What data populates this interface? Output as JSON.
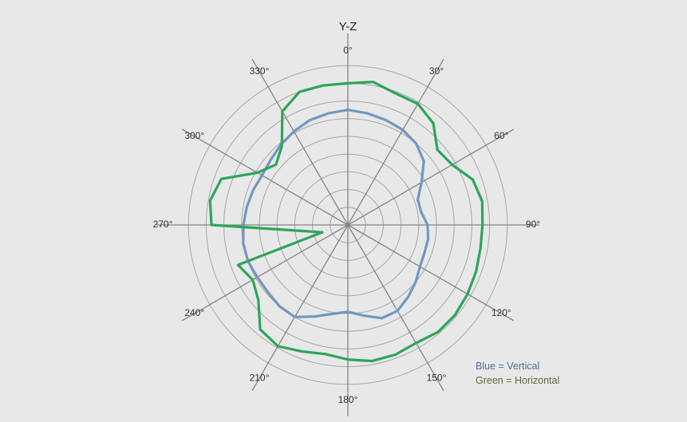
{
  "chart_data": {
    "type": "polar-line",
    "title": "Y-Z",
    "angle_ticks": [
      "0°",
      "30°",
      "60°",
      "90°",
      "120°",
      "150°",
      "180°",
      "210°",
      "240°",
      "270°",
      "300°",
      "330°"
    ],
    "angle_values": [
      0,
      30,
      60,
      90,
      120,
      150,
      180,
      210,
      240,
      270,
      300,
      330
    ],
    "radial_rings": 9,
    "radial_max": 9,
    "angle_direction": "clockwise",
    "zero_at": "top",
    "series": [
      {
        "key": "vertical",
        "color": "#7397c2",
        "points": [
          [
            0,
            6.5
          ],
          [
            10,
            6.4
          ],
          [
            20,
            6.3
          ],
          [
            30,
            6.2
          ],
          [
            40,
            6.0
          ],
          [
            50,
            5.6
          ],
          [
            60,
            4.8
          ],
          [
            70,
            4.2
          ],
          [
            80,
            4.2
          ],
          [
            90,
            4.5
          ],
          [
            100,
            4.6
          ],
          [
            110,
            4.6
          ],
          [
            120,
            4.7
          ],
          [
            130,
            5.0
          ],
          [
            140,
            5.3
          ],
          [
            150,
            5.6
          ],
          [
            160,
            5.6
          ],
          [
            170,
            5.2
          ],
          [
            180,
            4.9
          ],
          [
            190,
            5.1
          ],
          [
            200,
            5.5
          ],
          [
            210,
            6.0
          ],
          [
            220,
            6.0
          ],
          [
            230,
            5.9
          ],
          [
            240,
            5.9
          ],
          [
            250,
            6.0
          ],
          [
            260,
            6.0
          ],
          [
            270,
            5.9
          ],
          [
            280,
            5.8
          ],
          [
            290,
            5.7
          ],
          [
            300,
            5.6
          ],
          [
            310,
            5.7
          ],
          [
            320,
            5.9
          ],
          [
            330,
            6.1
          ],
          [
            340,
            6.3
          ],
          [
            350,
            6.4
          ],
          [
            360,
            6.5
          ]
        ]
      },
      {
        "key": "horizontal",
        "color": "#2ea55a",
        "points": [
          [
            0,
            8.0
          ],
          [
            10,
            8.2
          ],
          [
            20,
            7.9
          ],
          [
            30,
            7.9
          ],
          [
            40,
            7.5
          ],
          [
            50,
            6.6
          ],
          [
            60,
            6.8
          ],
          [
            70,
            7.5
          ],
          [
            80,
            7.7
          ],
          [
            90,
            7.6
          ],
          [
            100,
            7.6
          ],
          [
            110,
            7.7
          ],
          [
            120,
            7.8
          ],
          [
            130,
            7.9
          ],
          [
            140,
            7.9
          ],
          [
            150,
            7.7
          ],
          [
            160,
            7.8
          ],
          [
            170,
            7.8
          ],
          [
            180,
            7.6
          ],
          [
            190,
            7.4
          ],
          [
            200,
            7.6
          ],
          [
            210,
            7.9
          ],
          [
            220,
            7.7
          ],
          [
            230,
            6.6
          ],
          [
            240,
            6.2
          ],
          [
            250,
            6.6
          ],
          [
            254,
            1.5
          ],
          [
            270,
            7.7
          ],
          [
            280,
            7.9
          ],
          [
            290,
            7.6
          ],
          [
            300,
            5.9
          ],
          [
            310,
            5.3
          ],
          [
            320,
            5.8
          ],
          [
            330,
            7.4
          ],
          [
            340,
            8.0
          ],
          [
            350,
            8.0
          ],
          [
            360,
            8.0
          ]
        ]
      }
    ],
    "legend": {
      "placement": "bottom-right",
      "entries": [
        {
          "text": "Blue = Vertical",
          "color": "#4f6f93"
        },
        {
          "text": "Green = Horizontal",
          "color": "#5c6b43"
        }
      ]
    }
  },
  "colors": {
    "background": "#e8e8e8",
    "ring": "#a6a6a6",
    "spoke": "#858585",
    "vertical": "#7397c2",
    "horizontal": "#2ea55a"
  }
}
